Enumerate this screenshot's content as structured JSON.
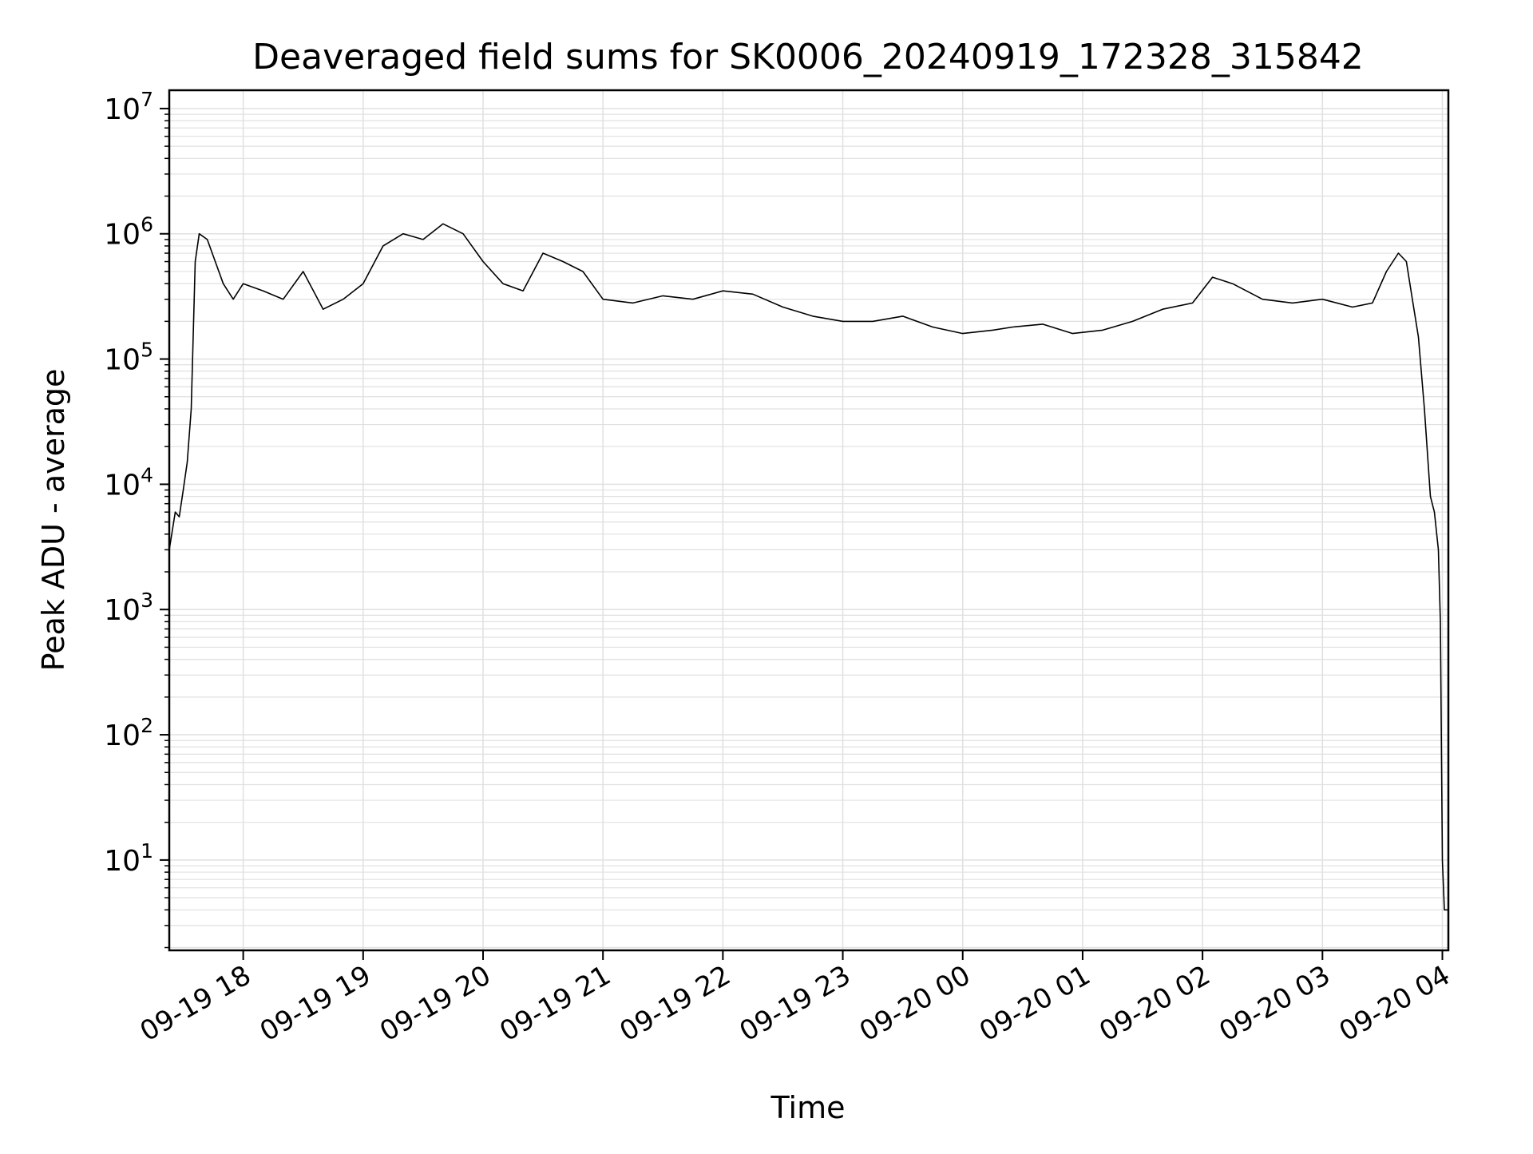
{
  "chart_data": {
    "type": "line",
    "title": "Deaveraged field sums for SK0006_20240919_172328_315842",
    "xlabel": "Time",
    "ylabel": "Peak ADU - average",
    "yscale": "log",
    "xlim": [
      "2024-09-19 17:23",
      "2024-09-20 04:03"
    ],
    "ylim": [
      1.9,
      14000000
    ],
    "grid": true,
    "legend": "none",
    "line_color": "#000000",
    "grid_color": "#e0e0e0",
    "x_tick_labels": [
      "09-19 18",
      "09-19 19",
      "09-19 20",
      "09-19 21",
      "09-19 22",
      "09-19 23",
      "09-20 00",
      "09-20 01",
      "09-20 02",
      "09-20 03",
      "09-20 04"
    ],
    "y_ticks": [
      {
        "base": "10",
        "exp": "1"
      },
      {
        "base": "10",
        "exp": "2"
      },
      {
        "base": "10",
        "exp": "3"
      },
      {
        "base": "10",
        "exp": "4"
      },
      {
        "base": "10",
        "exp": "5"
      },
      {
        "base": "10",
        "exp": "6"
      },
      {
        "base": "10",
        "exp": "7"
      }
    ],
    "series": [
      {
        "x": [
          "2024-09-19 17:23",
          "2024-09-19 17:26",
          "2024-09-19 17:28",
          "2024-09-19 17:30",
          "2024-09-19 17:32",
          "2024-09-19 17:34",
          "2024-09-19 17:36",
          "2024-09-19 17:38",
          "2024-09-19 17:42",
          "2024-09-19 17:46",
          "2024-09-19 17:50",
          "2024-09-19 17:55",
          "2024-09-19 18:00",
          "2024-09-19 18:10",
          "2024-09-19 18:20",
          "2024-09-19 18:30",
          "2024-09-19 18:40",
          "2024-09-19 18:50",
          "2024-09-19 19:00",
          "2024-09-19 19:10",
          "2024-09-19 19:20",
          "2024-09-19 19:30",
          "2024-09-19 19:40",
          "2024-09-19 19:50",
          "2024-09-19 20:00",
          "2024-09-19 20:10",
          "2024-09-19 20:20",
          "2024-09-19 20:30",
          "2024-09-19 20:40",
          "2024-09-19 20:50",
          "2024-09-19 21:00",
          "2024-09-19 21:15",
          "2024-09-19 21:30",
          "2024-09-19 21:45",
          "2024-09-19 22:00",
          "2024-09-19 22:15",
          "2024-09-19 22:30",
          "2024-09-19 22:45",
          "2024-09-19 23:00",
          "2024-09-19 23:15",
          "2024-09-19 23:30",
          "2024-09-19 23:45",
          "2024-09-20 00:00",
          "2024-09-20 00:15",
          "2024-09-20 00:25",
          "2024-09-20 00:40",
          "2024-09-20 00:55",
          "2024-09-20 01:10",
          "2024-09-20 01:25",
          "2024-09-20 01:40",
          "2024-09-20 01:55",
          "2024-09-20 02:05",
          "2024-09-20 02:15",
          "2024-09-20 02:30",
          "2024-09-20 02:45",
          "2024-09-20 03:00",
          "2024-09-20 03:15",
          "2024-09-20 03:25",
          "2024-09-20 03:32",
          "2024-09-20 03:38",
          "2024-09-20 03:42",
          "2024-09-20 03:45",
          "2024-09-20 03:48",
          "2024-09-20 03:51",
          "2024-09-20 03:54",
          "2024-09-20 03:56",
          "2024-09-20 03:58",
          "2024-09-20 03:59",
          "2024-09-20 04:00",
          "2024-09-20 04:01",
          "2024-09-20 04:03"
        ],
        "values": [
          3000,
          6000,
          5500,
          9000,
          15000,
          40000,
          600000,
          1000000,
          900000,
          600000,
          400000,
          300000,
          400000,
          350000,
          300000,
          500000,
          250000,
          300000,
          400000,
          800000,
          1000000,
          900000,
          1200000,
          1000000,
          600000,
          400000,
          350000,
          700000,
          600000,
          500000,
          300000,
          280000,
          320000,
          300000,
          350000,
          330000,
          260000,
          220000,
          200000,
          200000,
          220000,
          180000,
          160000,
          170000,
          180000,
          190000,
          160000,
          170000,
          200000,
          250000,
          280000,
          450000,
          400000,
          300000,
          280000,
          300000,
          260000,
          280000,
          500000,
          700000,
          600000,
          300000,
          150000,
          40000,
          8000,
          6000,
          3000,
          800,
          10,
          4,
          4
        ]
      }
    ]
  }
}
